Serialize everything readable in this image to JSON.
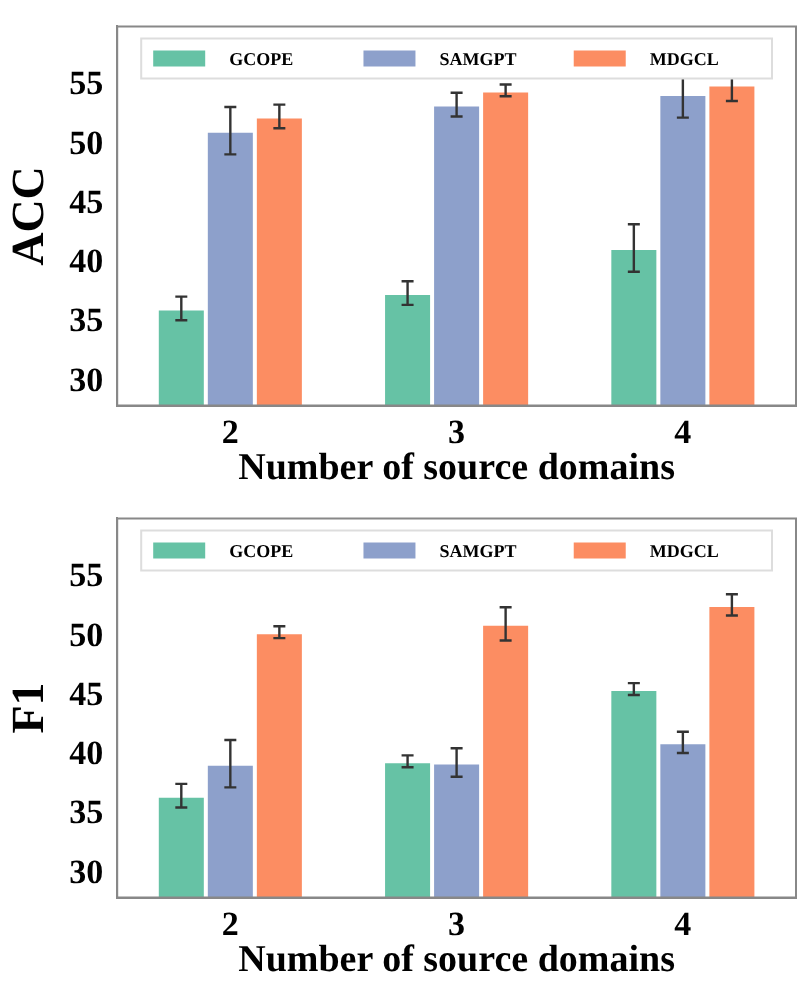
{
  "chart_data": [
    {
      "type": "bar",
      "xlabel": "Number of source domains",
      "ylabel": "ACC",
      "categories": [
        "2",
        "3",
        "4"
      ],
      "ylim": [
        28,
        60
      ],
      "yticks": [
        30,
        35,
        40,
        45,
        50,
        55
      ],
      "grid": false,
      "legend": "top",
      "series": [
        {
          "name": "GCOPE",
          "color": "#66c2a5",
          "values": [
            36.2,
            37.5,
            41.3
          ],
          "errors": [
            1.0,
            1.0,
            2.0
          ]
        },
        {
          "name": "SAMGPT",
          "color": "#8da0cb",
          "values": [
            51.2,
            53.4,
            54.3
          ],
          "errors": [
            2.0,
            1.0,
            2.0
          ]
        },
        {
          "name": "MDGCL",
          "color": "#fc8d62",
          "values": [
            52.4,
            54.6,
            55.1
          ],
          "errors": [
            1.0,
            0.5,
            1.4
          ]
        }
      ]
    },
    {
      "type": "bar",
      "xlabel": "Number of source domains",
      "ylabel": "F1",
      "categories": [
        "2",
        "3",
        "4"
      ],
      "ylim": [
        28,
        60
      ],
      "yticks": [
        30,
        35,
        40,
        45,
        50,
        55
      ],
      "grid": false,
      "legend": "top",
      "series": [
        {
          "name": "GCOPE",
          "color": "#66c2a5",
          "values": [
            36.6,
            39.5,
            45.6
          ],
          "errors": [
            1.0,
            0.5,
            0.5
          ]
        },
        {
          "name": "SAMGPT",
          "color": "#8da0cb",
          "values": [
            39.3,
            39.4,
            41.1
          ],
          "errors": [
            2.0,
            1.2,
            0.9
          ]
        },
        {
          "name": "MDGCL",
          "color": "#fc8d62",
          "values": [
            50.4,
            51.1,
            52.7
          ],
          "errors": [
            0.5,
            1.4,
            0.9
          ]
        }
      ]
    }
  ]
}
